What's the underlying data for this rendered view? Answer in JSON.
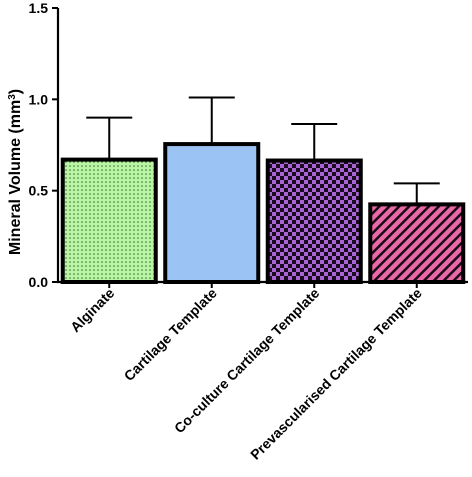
{
  "chart_data": {
    "type": "bar",
    "title": "",
    "xlabel": "",
    "ylabel": {
      "prefix": "Mineral Volume (mm",
      "sup": "3",
      "suffix": ")"
    },
    "ylim": [
      0,
      1.5
    ],
    "yticks": [
      "0.0",
      "0.5",
      "1.0",
      "1.5"
    ],
    "grid": false,
    "categories": [
      "Alginate",
      "Cartilage Template",
      "Co-culture Cartilage Template",
      "Prevascularised Cartilage Template"
    ],
    "values": [
      0.67,
      0.755,
      0.665,
      0.425
    ],
    "error_upper": [
      0.23,
      0.255,
      0.2,
      0.115
    ],
    "colors": [
      "#b9f5a5",
      "#9bc4f5",
      "#a864d0",
      "#e868a8"
    ],
    "patterns": [
      "dots",
      "solid",
      "checker",
      "diagonal-stripes"
    ]
  }
}
